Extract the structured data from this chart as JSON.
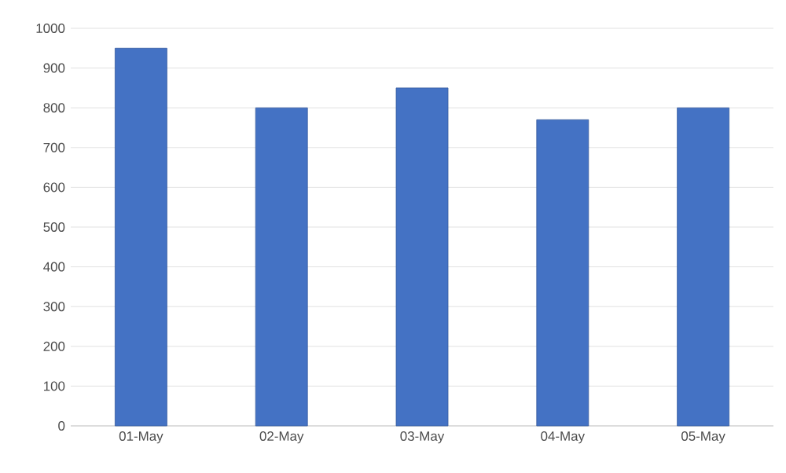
{
  "chart_data": {
    "type": "bar",
    "categories": [
      "01-May",
      "02-May",
      "03-May",
      "04-May",
      "05-May"
    ],
    "values": [
      950,
      800,
      850,
      770,
      800
    ],
    "color": "#4472c4",
    "ylim": [
      0,
      1000
    ],
    "yticks": [
      0,
      100,
      200,
      300,
      400,
      500,
      600,
      700,
      800,
      900,
      1000
    ],
    "grid": "y"
  }
}
